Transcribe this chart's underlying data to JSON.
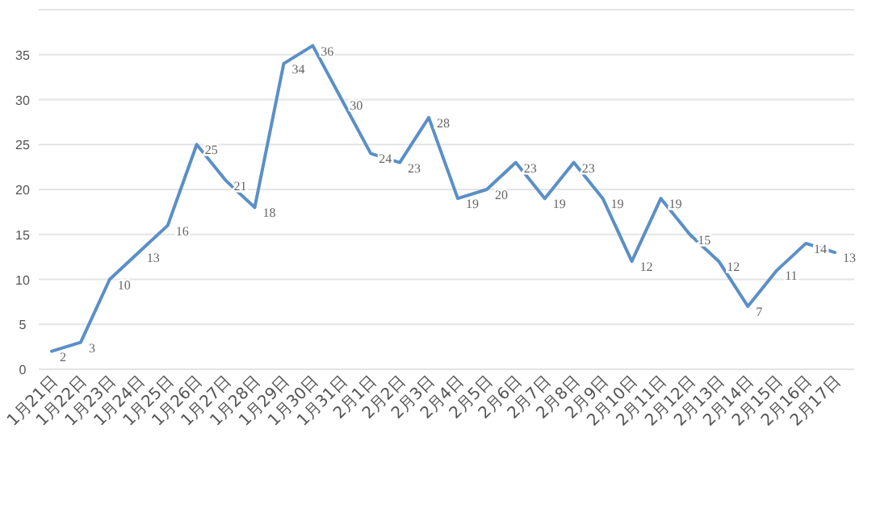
{
  "chart_data": {
    "type": "line",
    "categories": [
      "1月21日",
      "1月22日",
      "1月23日",
      "1月24日",
      "1月25日",
      "1月26日",
      "1月27日",
      "1月28日",
      "1月29日",
      "1月30日",
      "1月31日",
      "2月1日",
      "2月2日",
      "2月3日",
      "2月4日",
      "2月5日",
      "2月6日",
      "2月7日",
      "2月8日",
      "2月9日",
      "2月10日",
      "2月11日",
      "2月12日",
      "2月13日",
      "2月14日",
      "2月15日",
      "2月16日",
      "2月17日"
    ],
    "values": [
      2,
      3,
      10,
      13,
      16,
      25,
      21,
      18,
      34,
      36,
      30,
      24,
      23,
      28,
      19,
      20,
      23,
      19,
      23,
      19,
      12,
      19,
      15,
      12,
      7,
      11,
      14,
      13
    ],
    "color": "#5b8fc6",
    "ylim": [
      0,
      40
    ],
    "yticks": [
      0,
      5,
      10,
      15,
      20,
      25,
      30,
      35,
      {
        "value": 40,
        "label": null
      }
    ],
    "grid": "y",
    "data_labels": true,
    "marker": "none",
    "line_style": "solid"
  }
}
